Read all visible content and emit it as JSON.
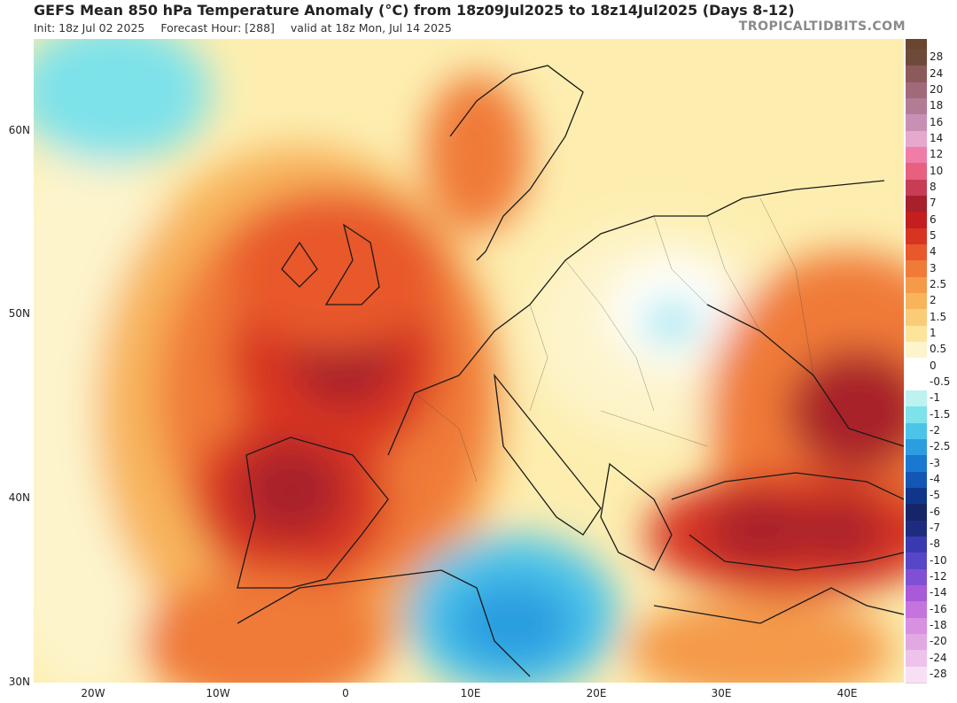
{
  "header": {
    "title": "GEFS Mean 850 hPa Temperature Anomaly (°C) from 18z09Jul2025 to 18z14Jul2025 (Days 8-12)",
    "init": "Init: 18z Jul 02 2025",
    "forecast_hour": "Forecast Hour: [288]",
    "valid": "valid at 18z Mon, Jul 14 2025",
    "brand": "TROPICALTIDBITS.COM"
  },
  "axes": {
    "lat_labels": [
      "60N",
      "50N",
      "40N",
      "30N"
    ],
    "lon_labels": [
      "20W",
      "10W",
      "0",
      "10E",
      "20E",
      "30E",
      "40E"
    ]
  },
  "legend": {
    "labels": [
      "28",
      "24",
      "20",
      "18",
      "16",
      "14",
      "12",
      "10",
      "8",
      "7",
      "6",
      "5",
      "4",
      "3",
      "2.5",
      "2",
      "1.5",
      "1",
      "0.5",
      "0",
      "-0.5",
      "-1",
      "-1.5",
      "-2",
      "-2.5",
      "-3",
      "-4",
      "-5",
      "-6",
      "-7",
      "-8",
      "-10",
      "-12",
      "-14",
      "-16",
      "-18",
      "-20",
      "-24",
      "-28"
    ],
    "colors": [
      "#6e4a3a",
      "#8c5a5a",
      "#a06a7a",
      "#b27c94",
      "#c890b4",
      "#e6a8cc",
      "#f07ca8",
      "#e86080",
      "#c83c54",
      "#a8202c",
      "#c41e1e",
      "#d83422",
      "#e8582c",
      "#f07a38",
      "#f49a48",
      "#f8b45c",
      "#fbcc78",
      "#fde49a",
      "#fdf4cc",
      "#ffffff",
      "#ffffff",
      "#bdf2f2",
      "#7ee2ea",
      "#4cc4ea",
      "#2c9ee0",
      "#1a78d0",
      "#1456b4",
      "#10368c",
      "#162468",
      "#1e2c80",
      "#3a3ab0",
      "#5846c8",
      "#8050d4",
      "#a85ad8",
      "#c474dc",
      "#d890e0",
      "#e2a8e2",
      "#eec2ea",
      "#f8e0f4"
    ],
    "top_color": "#6a4630"
  }
}
